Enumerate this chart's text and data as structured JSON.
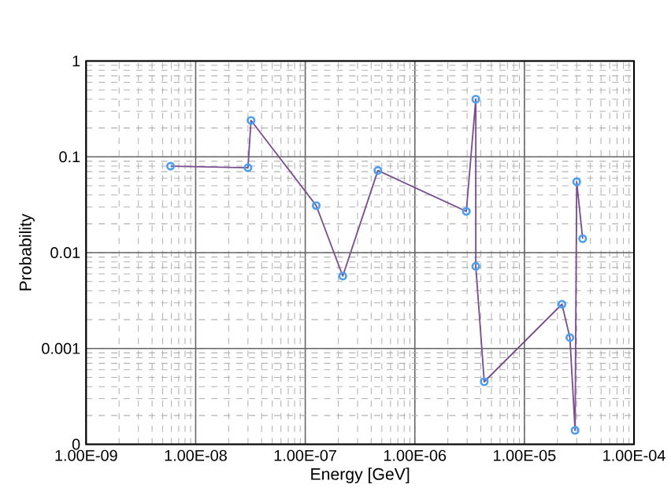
{
  "chart_data": {
    "type": "line",
    "xlabel": "Energy [GeV]",
    "ylabel": "Probability",
    "log": "xy",
    "grid": true,
    "marker": "circle",
    "xlim": [
      1e-09,
      0.0001
    ],
    "ylim": [
      0.0001,
      1
    ],
    "xticks": [
      {
        "value": 1e-09,
        "label": "1.00E-09"
      },
      {
        "value": 1e-08,
        "label": "1.00E-08"
      },
      {
        "value": 1e-07,
        "label": "1.00E-07"
      },
      {
        "value": 1e-06,
        "label": "1.00E-06"
      },
      {
        "value": 1e-05,
        "label": "1.00E-05"
      },
      {
        "value": 0.0001,
        "label": "1.00E-04"
      }
    ],
    "yticks": [
      {
        "value": 0.0001,
        "label": "0"
      },
      0.001,
      0.01,
      0.1,
      1
    ],
    "series": [
      {
        "color": "#7b4f8f",
        "x": [
          5.9e-09,
          3e-08,
          3.2e-08,
          1.26e-07,
          2.2e-07,
          4.6e-07,
          2.95e-06,
          3.6e-06,
          3.6e-06,
          4.3e-06,
          2.2e-05,
          2.6e-05,
          2.9e-05,
          3e-05,
          3.4e-05
        ],
        "values": [
          0.08,
          0.077,
          0.24,
          0.031,
          0.0057,
          0.072,
          0.027,
          0.4,
          0.0072,
          0.00045,
          0.0029,
          0.0013,
          0.00014,
          0.055,
          0.014
        ]
      }
    ]
  }
}
